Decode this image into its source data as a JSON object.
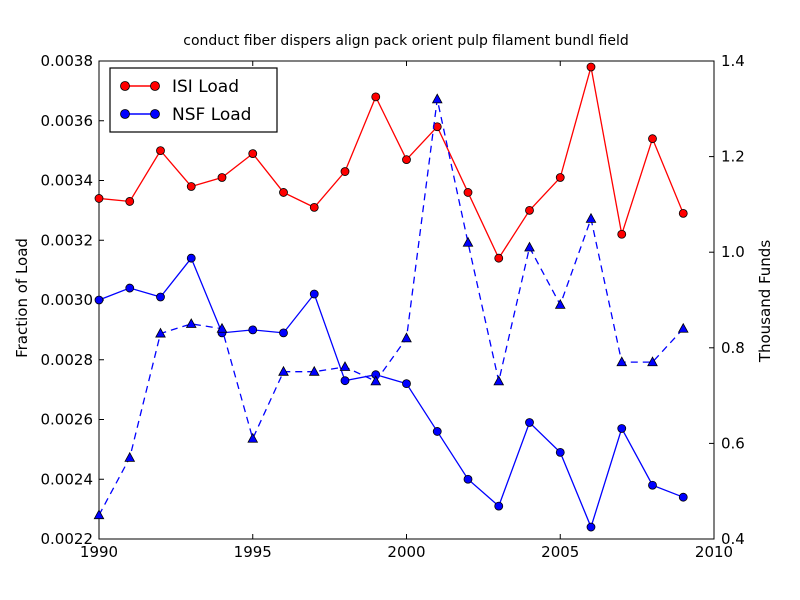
{
  "figure": {
    "background": "#ffffff"
  },
  "chart_data": {
    "type": "line",
    "title": "conduct fiber dispers align pack orient pulp filament bundl field",
    "grid": false,
    "x_years": [
      1990,
      1991,
      1992,
      1993,
      1994,
      1995,
      1996,
      1997,
      1998,
      1999,
      2000,
      2001,
      2002,
      2003,
      2004,
      2005,
      2006,
      2007,
      2008,
      2009
    ],
    "xlim": [
      1990,
      2010
    ],
    "xtick_labels": [
      "1990",
      "1995",
      "2000",
      "2005",
      "2010"
    ],
    "left_axis": {
      "label": "Fraction of Load",
      "lim": [
        0.0022,
        0.0038
      ],
      "tick_labels": [
        "0.0022",
        "0.0024",
        "0.0026",
        "0.0028",
        "0.0030",
        "0.0032",
        "0.0034",
        "0.0036",
        "0.0038"
      ]
    },
    "right_axis": {
      "label": "Thousand Funds",
      "lim": [
        0.4,
        1.4
      ],
      "tick_labels": [
        "0.4",
        "0.6",
        "0.8",
        "1.0",
        "1.2",
        "1.4"
      ]
    },
    "series": [
      {
        "name": "ISI Load",
        "axis": "left",
        "color": "#ff0000",
        "line_style": "solid",
        "marker": "circle",
        "values": [
          0.00334,
          0.00333,
          0.0035,
          0.00338,
          0.00341,
          0.00349,
          0.00336,
          0.00331,
          0.00343,
          0.00368,
          0.00347,
          0.00358,
          0.00336,
          0.00314,
          0.0033,
          0.00341,
          0.00378,
          0.00322,
          0.00354,
          0.00329
        ]
      },
      {
        "name": "NSF Load",
        "axis": "left",
        "color": "#0000ff",
        "line_style": "solid",
        "marker": "circle",
        "values": [
          0.003,
          0.00304,
          0.00301,
          0.00314,
          0.00289,
          0.0029,
          0.00289,
          0.00302,
          0.00273,
          0.00275,
          0.00272,
          0.00256,
          0.0024,
          0.00231,
          0.00259,
          0.00249,
          0.00224,
          0.00257,
          0.00238,
          0.00234
        ]
      },
      {
        "name": "",
        "axis": "right",
        "color": "#0000ff",
        "line_style": "dashed",
        "marker": "triangle",
        "values": [
          0.45,
          0.57,
          0.83,
          0.85,
          0.84,
          0.61,
          0.75,
          0.75,
          0.76,
          0.73,
          0.82,
          1.32,
          1.02,
          0.73,
          1.01,
          0.89,
          1.07,
          0.77,
          0.77,
          0.84
        ]
      }
    ],
    "legend": {
      "position": "upper left",
      "entries": [
        {
          "label": "ISI Load",
          "color": "#ff0000"
        },
        {
          "label": "NSF Load",
          "color": "#0000ff"
        }
      ]
    }
  }
}
